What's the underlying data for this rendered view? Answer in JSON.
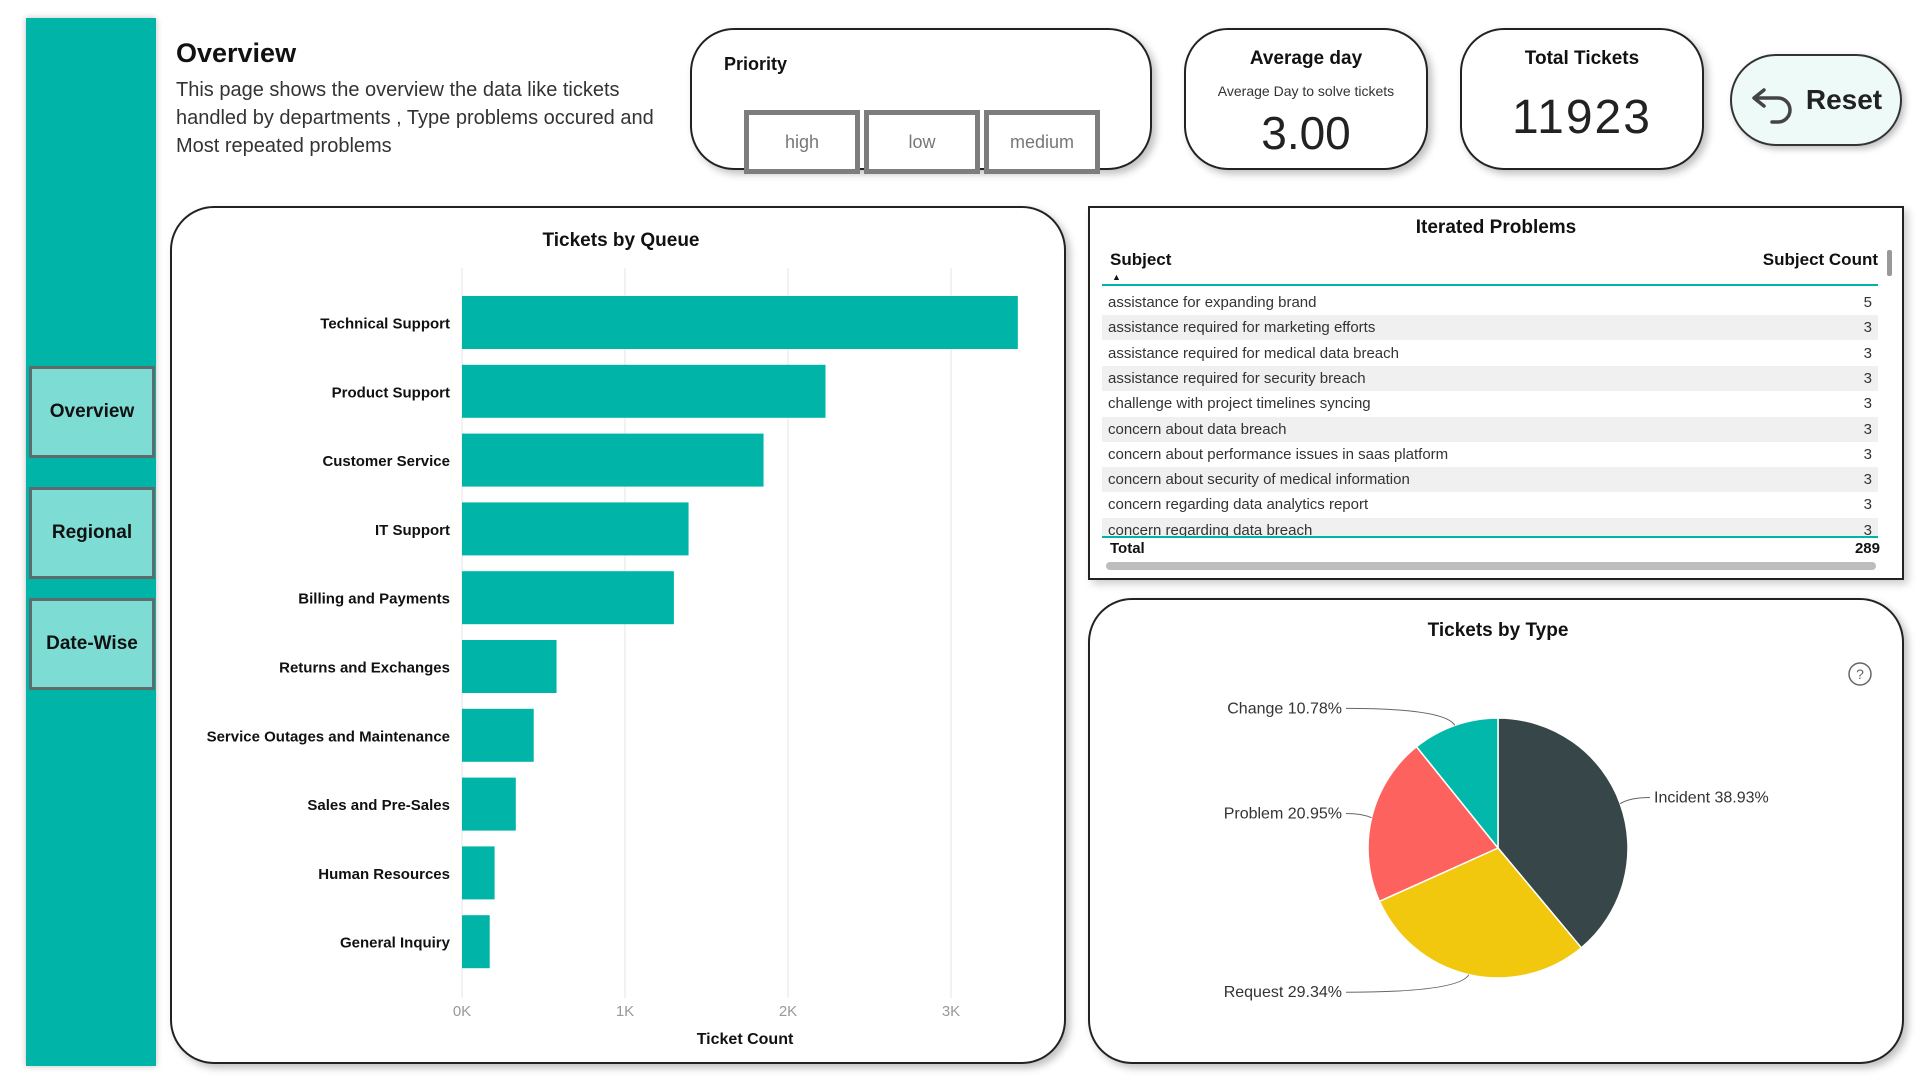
{
  "nav": {
    "items": [
      {
        "label": "Overview"
      },
      {
        "label": "Regional"
      },
      {
        "label": "Date-Wise"
      }
    ]
  },
  "header": {
    "title": "Overview",
    "description": "This  page shows the overview the data like tickets handled by departments , Type problems occured and Most repeated problems"
  },
  "priority": {
    "title": "Priority",
    "options": [
      "high",
      "low",
      "medium"
    ]
  },
  "avg_card": {
    "title": "Average day",
    "subtitle": "Average Day to solve tickets",
    "value": "3.00"
  },
  "total_card": {
    "title": "Total Tickets",
    "value": "11923"
  },
  "reset": {
    "label": "Reset"
  },
  "colors": {
    "teal": "#00b5a7",
    "incident": "#374649",
    "request": "#f2c80f",
    "problem": "#fd625e",
    "change": "#01b8aa"
  },
  "chart_data": [
    {
      "type": "bar",
      "orientation": "horizontal",
      "title": "Tickets by Queue",
      "xlabel": "Ticket Count",
      "ylabel": "",
      "categories": [
        "Technical Support",
        "Product Support",
        "Customer Service",
        "IT Support",
        "Billing and Payments",
        "Returns and Exchanges",
        "Service Outages and Maintenance",
        "Sales and Pre-Sales",
        "Human Resources",
        "General Inquiry"
      ],
      "values": [
        3410,
        2230,
        1850,
        1390,
        1300,
        580,
        440,
        330,
        200,
        170
      ],
      "xlim": [
        0,
        3500
      ],
      "ticks": [
        {
          "v": 0,
          "label": "0K"
        },
        {
          "v": 1000,
          "label": "1K"
        },
        {
          "v": 2000,
          "label": "2K"
        },
        {
          "v": 3000,
          "label": "3K"
        }
      ],
      "grid": true
    },
    {
      "type": "pie",
      "title": "Tickets by Type",
      "slices": [
        {
          "name": "Incident",
          "value": 38.93,
          "label": "Incident 38.93%"
        },
        {
          "name": "Request",
          "value": 29.34,
          "label": "Request 29.34%"
        },
        {
          "name": "Problem",
          "value": 20.95,
          "label": "Problem 20.95%"
        },
        {
          "name": "Change",
          "value": 10.78,
          "label": "Change 10.78%"
        }
      ]
    },
    {
      "type": "table",
      "title": "Iterated Problems",
      "columns": [
        "Subject",
        "Subject Count"
      ],
      "rows": [
        [
          "assistance for expanding brand",
          "5"
        ],
        [
          "assistance required for marketing efforts",
          "3"
        ],
        [
          "assistance required for medical data breach",
          "3"
        ],
        [
          "assistance required for security breach",
          "3"
        ],
        [
          "challenge with project timelines syncing",
          "3"
        ],
        [
          "concern about data breach",
          "3"
        ],
        [
          "concern about performance issues in saas platform",
          "3"
        ],
        [
          "concern about security of medical information",
          "3"
        ],
        [
          "concern regarding data analytics report",
          "3"
        ],
        [
          "concern regarding data breach",
          "3"
        ]
      ],
      "total_label": "Total",
      "total_value": "289"
    }
  ]
}
